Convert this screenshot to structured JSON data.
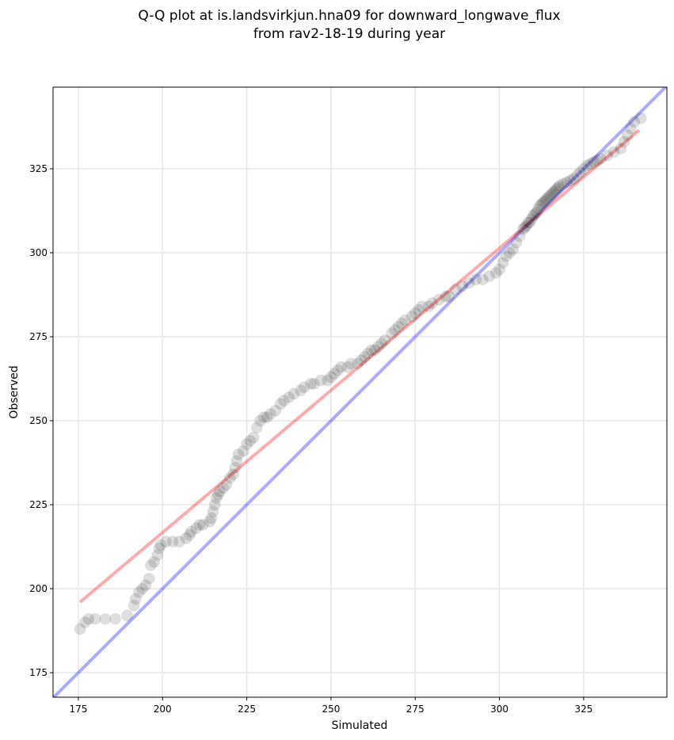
{
  "chart_data": {
    "type": "scatter",
    "title": [
      "Q-Q plot at is.landsvirkjun.hna09 for downward_longwave_flux",
      "from rav2-18-19 during year"
    ],
    "xlabel": "Simulated",
    "ylabel": "Observed",
    "xlim": [
      167.5,
      349.7
    ],
    "ylim": [
      167.7,
      349.3
    ],
    "xticks": [
      175,
      200,
      225,
      250,
      275,
      300,
      325
    ],
    "yticks": [
      175,
      200,
      225,
      250,
      275,
      300,
      325
    ],
    "grid": true,
    "reference_line": {
      "name": "1:1 line",
      "color": "#0000ff",
      "slope": 1,
      "intercept": 0
    },
    "fit_line": {
      "name": "regression fit",
      "color": "#ff0000",
      "x": [
        175.5,
        341.5
      ],
      "y": [
        196,
        336.5
      ]
    },
    "points": [
      [
        175.5,
        188
      ],
      [
        177,
        190
      ],
      [
        178,
        191
      ],
      [
        180,
        191
      ],
      [
        183,
        191
      ],
      [
        186,
        191
      ],
      [
        189.5,
        192
      ],
      [
        191.5,
        195
      ],
      [
        192,
        197
      ],
      [
        193,
        199
      ],
      [
        194,
        200
      ],
      [
        195,
        201
      ],
      [
        196,
        203
      ],
      [
        196.5,
        207
      ],
      [
        197.5,
        208
      ],
      [
        198.5,
        210
      ],
      [
        199,
        212
      ],
      [
        199.5,
        213
      ],
      [
        201,
        214
      ],
      [
        203,
        214
      ],
      [
        205,
        214
      ],
      [
        207,
        215
      ],
      [
        208,
        216
      ],
      [
        208.5,
        217
      ],
      [
        210,
        218
      ],
      [
        211,
        219
      ],
      [
        212,
        219
      ],
      [
        214,
        220
      ],
      [
        214.5,
        221
      ],
      [
        215,
        223
      ],
      [
        215.5,
        225
      ],
      [
        216,
        227
      ],
      [
        216.5,
        228
      ],
      [
        217,
        229
      ],
      [
        218,
        230
      ],
      [
        219,
        231
      ],
      [
        220,
        233
      ],
      [
        221,
        234
      ],
      [
        221.5,
        236
      ],
      [
        222,
        238
      ],
      [
        222.5,
        240
      ],
      [
        224,
        241
      ],
      [
        225,
        243
      ],
      [
        226,
        244
      ],
      [
        227,
        245
      ],
      [
        228,
        248
      ],
      [
        229,
        250
      ],
      [
        230,
        251
      ],
      [
        231,
        251
      ],
      [
        232,
        252
      ],
      [
        233.5,
        253
      ],
      [
        235,
        255
      ],
      [
        236,
        256
      ],
      [
        237.5,
        257
      ],
      [
        239,
        258
      ],
      [
        241,
        259
      ],
      [
        242,
        260
      ],
      [
        244,
        261
      ],
      [
        245,
        261
      ],
      [
        247,
        262
      ],
      [
        249,
        262
      ],
      [
        250,
        263
      ],
      [
        251,
        264
      ],
      [
        252,
        265
      ],
      [
        253,
        266
      ],
      [
        255,
        266
      ],
      [
        256,
        267
      ],
      [
        258,
        267
      ],
      [
        259,
        268
      ],
      [
        260,
        269
      ],
      [
        261,
        270
      ],
      [
        262,
        271
      ],
      [
        263,
        271
      ],
      [
        264,
        272
      ],
      [
        265,
        273
      ],
      [
        266,
        274
      ],
      [
        268,
        276
      ],
      [
        269,
        277
      ],
      [
        270,
        278
      ],
      [
        271,
        279
      ],
      [
        272,
        280
      ],
      [
        274,
        281
      ],
      [
        275,
        282
      ],
      [
        276,
        283
      ],
      [
        277,
        284
      ],
      [
        279,
        284
      ],
      [
        280,
        285
      ],
      [
        282,
        286
      ],
      [
        284,
        287
      ],
      [
        285,
        287
      ],
      [
        287,
        289
      ],
      [
        289,
        290
      ],
      [
        291,
        291
      ],
      [
        293,
        292
      ],
      [
        295,
        292
      ],
      [
        297,
        293
      ],
      [
        299,
        294
      ],
      [
        300,
        295
      ],
      [
        301,
        297
      ],
      [
        302,
        299
      ],
      [
        303,
        300
      ],
      [
        304,
        301
      ],
      [
        305,
        303
      ],
      [
        306,
        305
      ],
      [
        307,
        307
      ],
      [
        307.5,
        307.5
      ],
      [
        308,
        308
      ],
      [
        308.5,
        309
      ],
      [
        309,
        309
      ],
      [
        309.5,
        310
      ],
      [
        310,
        311
      ],
      [
        310.5,
        311.5
      ],
      [
        311,
        312
      ],
      [
        311.5,
        313
      ],
      [
        312,
        314
      ],
      [
        312.5,
        314.5
      ],
      [
        313,
        315
      ],
      [
        313.5,
        315.5
      ],
      [
        314,
        316
      ],
      [
        314.5,
        316.5
      ],
      [
        315,
        317
      ],
      [
        315.5,
        317.5
      ],
      [
        316,
        318
      ],
      [
        316.5,
        318.5
      ],
      [
        317,
        319
      ],
      [
        317.5,
        319.5
      ],
      [
        318,
        320
      ],
      [
        319,
        320.5
      ],
      [
        320,
        321
      ],
      [
        321,
        321.5
      ],
      [
        322,
        322
      ],
      [
        323,
        323
      ],
      [
        324,
        324
      ],
      [
        325,
        325
      ],
      [
        326,
        326
      ],
      [
        327,
        326.5
      ],
      [
        328,
        327
      ],
      [
        329,
        327.5
      ],
      [
        330,
        328
      ],
      [
        332,
        329
      ],
      [
        334,
        330
      ],
      [
        336,
        331
      ],
      [
        337,
        333
      ],
      [
        338,
        335
      ],
      [
        339,
        337
      ],
      [
        340,
        339
      ],
      [
        342,
        340
      ]
    ]
  }
}
